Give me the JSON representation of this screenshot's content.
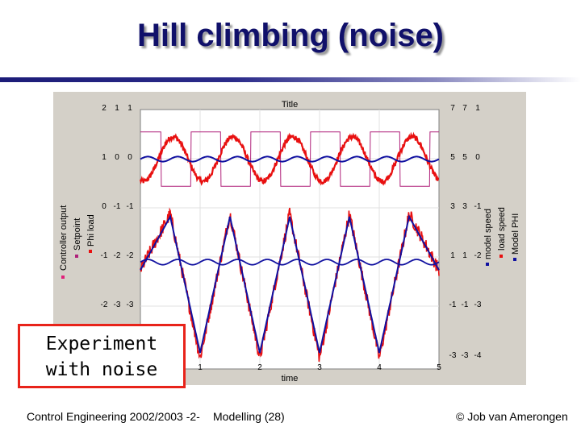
{
  "slide": {
    "title": "Hill climbing (noise)",
    "callout_line1": "Experiment",
    "callout_line2": "with noise",
    "footer_left": "Control Engineering 2002/2003 -2-",
    "footer_mid": "Modelling  (28)",
    "footer_right": "© Job van Amerongen"
  },
  "colors": {
    "title": "#10106a",
    "plot_background": "#ffffff",
    "panel": "#d4d0c8",
    "setpoint": "#b0207a",
    "phi_load": "#e81010",
    "model_phi": "#1010a0",
    "controller_output": "#e0207a",
    "load_speed": "#e81010",
    "model_speed": "#1010a0",
    "callout_border": "#e8231a"
  },
  "chart_data": {
    "type": "line",
    "title": "Title",
    "xlabel": "time",
    "xlim": [
      0,
      5
    ],
    "x_ticks": [
      "1",
      "2",
      "3",
      "4",
      "5"
    ],
    "grid": true,
    "left_axis_labels": [
      "Controller output",
      "Setpoint",
      "Phi load"
    ],
    "right_axis_labels": [
      "model speed",
      "load speed",
      "Model PHI"
    ],
    "left_tick_rows": [
      [
        "2",
        "1",
        "1"
      ],
      [
        "1",
        "0",
        "0"
      ],
      [
        "0",
        "-1",
        "-1"
      ],
      [
        "-1",
        "-2",
        "-2"
      ],
      [
        "-2",
        "-3",
        "-3"
      ]
    ],
    "right_tick_rows": [
      [
        "7",
        "7",
        "1"
      ],
      [
        "5",
        "5",
        "0"
      ],
      [
        "3",
        "3",
        "-1"
      ],
      [
        "1",
        "1",
        "-2"
      ],
      [
        "-1",
        "-1",
        "-3"
      ],
      [
        "-3",
        "-3",
        "-4"
      ]
    ],
    "upper_panel": {
      "ylim": [
        -1,
        1
      ],
      "setpoint": {
        "type": "square",
        "amplitude": 0.55,
        "period": 1.0,
        "low_intervals": [
          [
            0.35,
            0.85
          ],
          [
            1.35,
            1.85
          ],
          [
            2.35,
            2.85
          ],
          [
            3.35,
            3.85
          ],
          [
            4.35,
            4.85
          ]
        ]
      },
      "phi_load": {
        "type": "sine",
        "amplitude": 0.45,
        "period": 1.0,
        "phase_peak_at": 0.55,
        "noise": 0.05
      },
      "model_phi": {
        "type": "near_constant",
        "level": 0.0,
        "ripple": 0.05
      }
    },
    "lower_panel": {
      "ylim": [
        -4,
        2
      ],
      "load_speed": {
        "type": "triangle",
        "peak_times": [
          1.5,
          2.5,
          3.5,
          4.5
        ],
        "peak": 1.8,
        "trough_times": [
          1.0,
          2.0,
          3.0,
          4.0
        ],
        "trough": -3.6,
        "noise": 0.25
      },
      "model_speed": {
        "type": "triangle",
        "peak_times": [
          1.5,
          2.5,
          3.5,
          4.5
        ],
        "peak": 1.7,
        "trough_times": [
          1.0,
          2.0,
          3.0,
          4.0
        ],
        "trough": -3.4
      },
      "controller_output": {
        "type": "near_constant",
        "level": 0.0,
        "ripple": 0.1
      }
    }
  }
}
